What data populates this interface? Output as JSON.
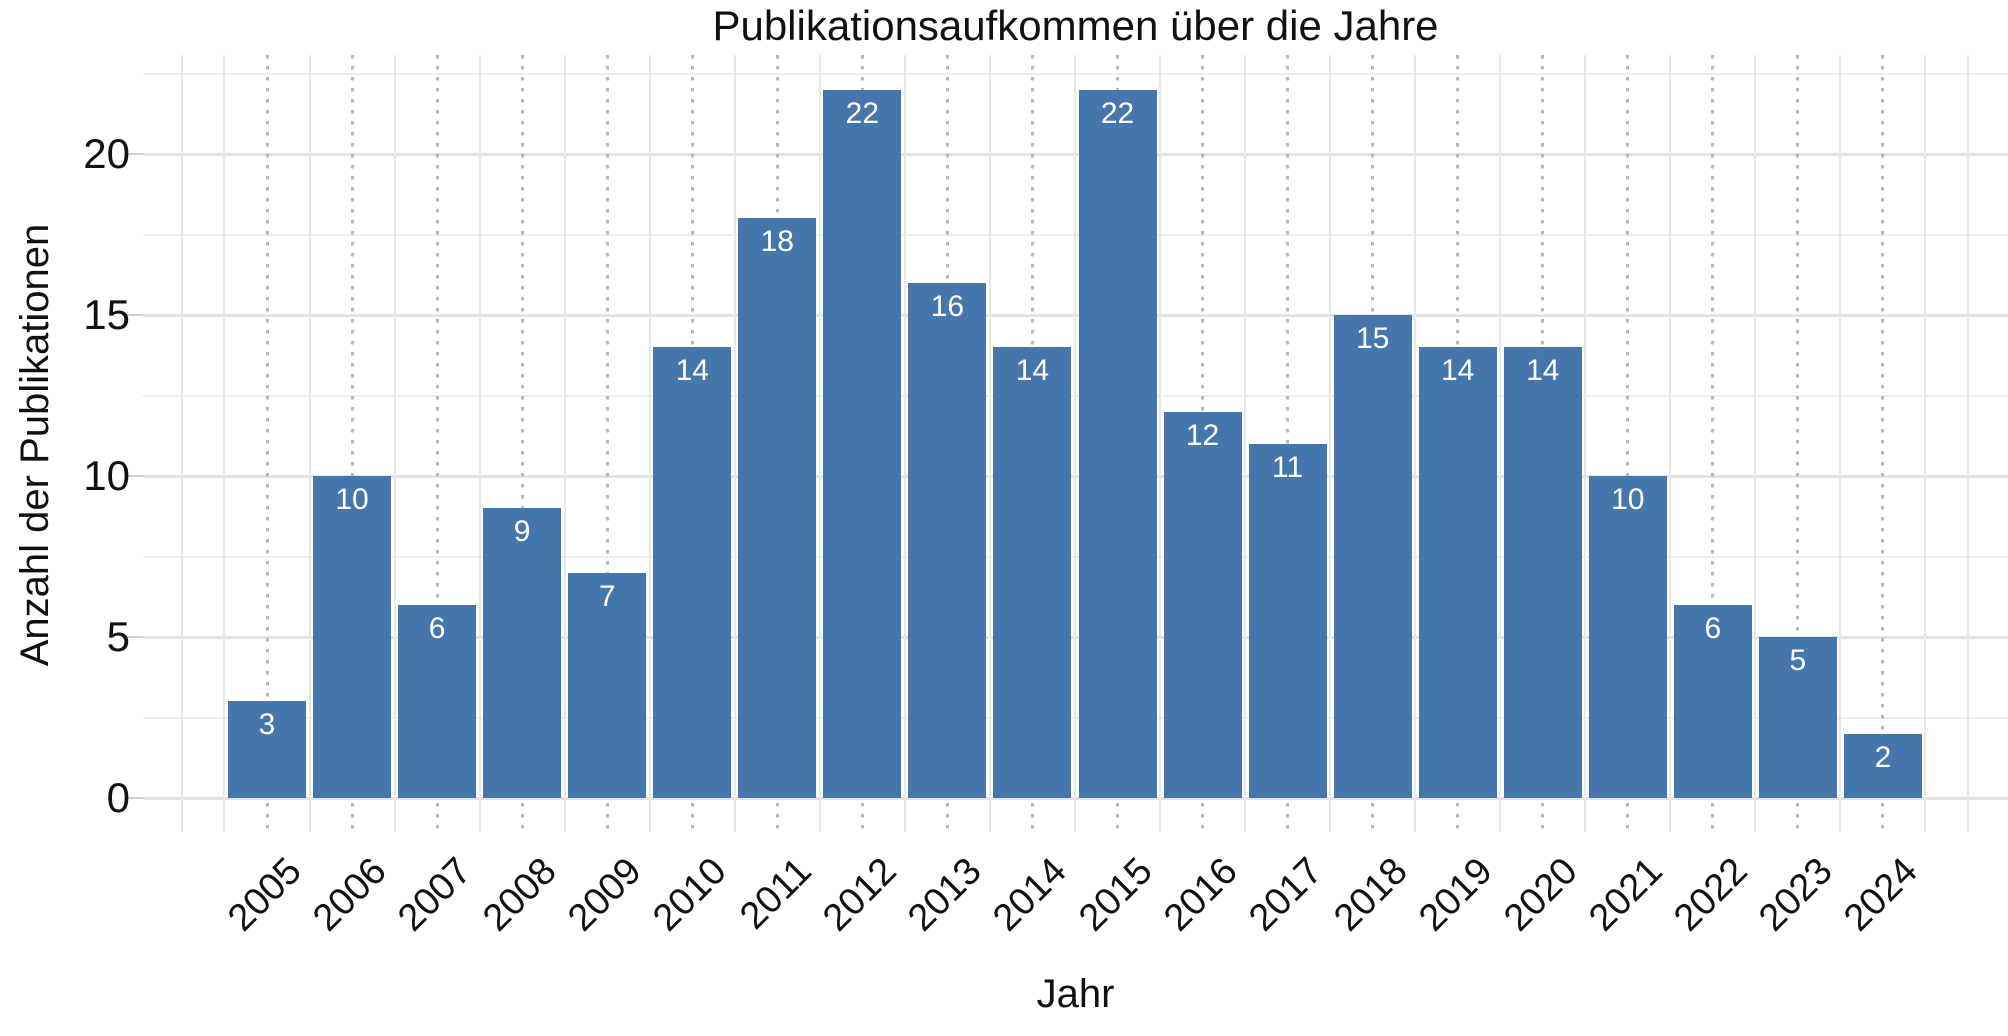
{
  "chart_data": {
    "type": "bar",
    "title": "Publikationsaufkommen über die Jahre",
    "xlabel": "Jahr",
    "ylabel": "Anzahl der Publikationen",
    "categories": [
      "2005",
      "2006",
      "2007",
      "2008",
      "2009",
      "2010",
      "2011",
      "2012",
      "2013",
      "2014",
      "2015",
      "2016",
      "2017",
      "2018",
      "2019",
      "2020",
      "2021",
      "2022",
      "2023",
      "2024"
    ],
    "values": [
      3,
      10,
      6,
      9,
      7,
      14,
      18,
      22,
      16,
      14,
      22,
      12,
      11,
      15,
      14,
      14,
      10,
      6,
      5,
      2
    ],
    "bar_value_labels": [
      "3",
      "10",
      "6",
      "9",
      "7",
      "14",
      "18",
      "22",
      "16",
      "14",
      "22",
      "12",
      "11",
      "15",
      "14",
      "14",
      "10",
      "6",
      "5",
      "2"
    ],
    "yticks": [
      0,
      5,
      10,
      15,
      20
    ],
    "yticks_minor": [
      2.5,
      7.5,
      12.5,
      17.5,
      22.5
    ],
    "ylim": [
      0,
      23.1
    ],
    "legend": "none",
    "grid": {
      "horizontal_major": true,
      "horizontal_minor": true,
      "vertical_solid_between_bars": true,
      "vertical_dotted_at_bar_centers": true
    },
    "colors": {
      "background": "#ffffff",
      "bar": "#4677ac",
      "bar_label_text": "#ffffff",
      "axis_text": "#111111",
      "grid_major_h": "#e3e3e3",
      "grid_minor_h": "#eeeeee",
      "grid_minor_v": "#e8e8e8",
      "grid_dotted_v": "#b8b8b8",
      "tick_mark": "#cfcfcf"
    }
  }
}
